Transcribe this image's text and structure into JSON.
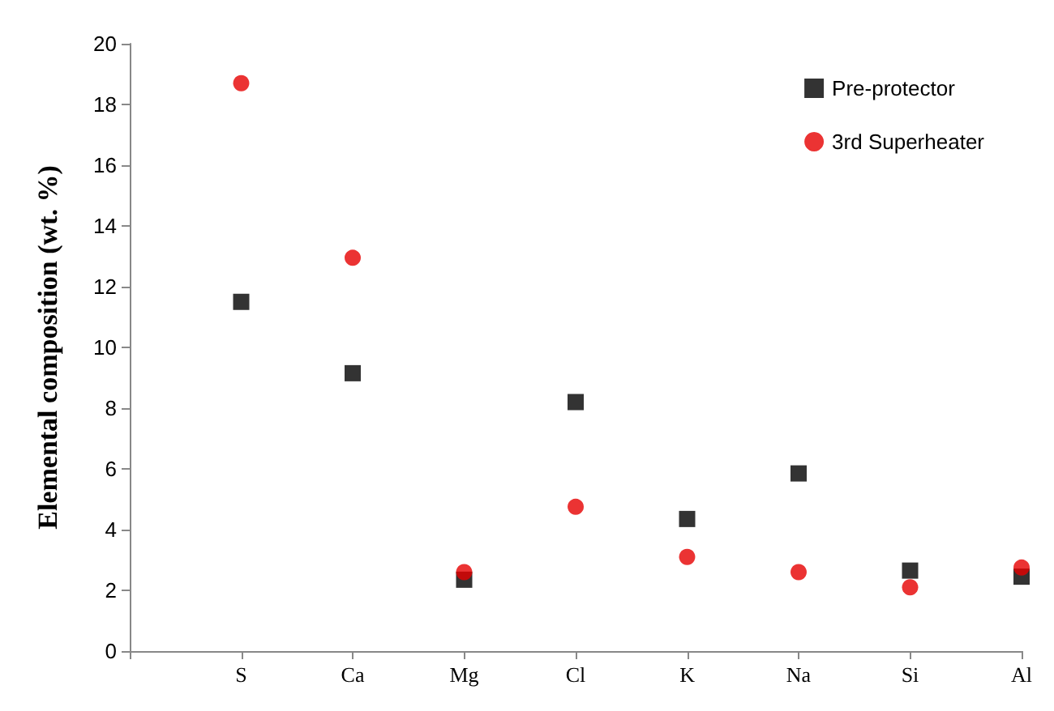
{
  "chart_data": {
    "type": "scatter",
    "ylabel": "Elemental composition (wt. %)",
    "categories": [
      null,
      "S",
      "Ca",
      "Mg",
      "Cl",
      "K",
      "Na",
      "Si",
      "Al"
    ],
    "series": [
      {
        "name": "Pre-protector",
        "color": "#000000",
        "marker": "square",
        "values": [
          null,
          11.5,
          9.15,
          2.35,
          8.2,
          4.35,
          5.85,
          2.65,
          2.45
        ]
      },
      {
        "name": "3rd Superheater",
        "color": "#e60000",
        "marker": "circle",
        "values": [
          null,
          18.7,
          12.95,
          2.6,
          4.75,
          3.1,
          2.6,
          2.1,
          2.75
        ]
      }
    ],
    "ylim": [
      0,
      20
    ],
    "yticks": [
      0,
      2,
      4,
      6,
      8,
      10,
      12,
      14,
      16,
      18,
      20
    ],
    "grid": false,
    "legend": "top right"
  }
}
